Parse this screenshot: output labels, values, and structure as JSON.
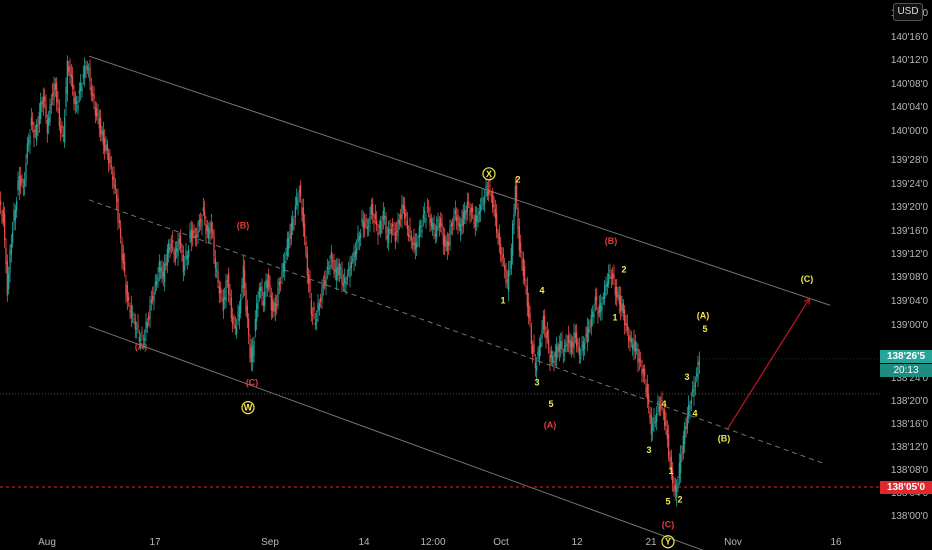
{
  "currency": "USD",
  "chart_data": {
    "type": "line",
    "subtype": "candlestick",
    "title": "",
    "y_range_ticks": [
      "138'00'0",
      "138'04'0",
      "138'08'0",
      "138'12'0",
      "138'16'0",
      "138'20'0",
      "138'24'0",
      "138'28'0",
      "139'00'0",
      "139'04'0",
      "139'08'0",
      "139'12'0",
      "139'16'0",
      "139'20'0",
      "139'24'0",
      "139'28'0",
      "140'00'0",
      "140'04'0",
      "140'08'0",
      "140'12'0",
      "140'16'0",
      "140'20'0"
    ],
    "x_tick_labels": [
      "Aug",
      "17",
      "Sep",
      "14",
      "12:00",
      "Oct",
      "12",
      "21",
      "Nov",
      "16"
    ],
    "last_price_label": "138'26'5",
    "countdown_label": "20:13",
    "horizontal_level_label": "138'05'0",
    "price_path": [
      [
        0,
        139.62
      ],
      [
        4,
        139.55
      ],
      [
        8,
        139.18
      ],
      [
        12,
        139.45
      ],
      [
        16,
        139.62
      ],
      [
        20,
        139.78
      ],
      [
        24,
        139.7
      ],
      [
        28,
        139.92
      ],
      [
        32,
        140.05
      ],
      [
        36,
        139.98
      ],
      [
        40,
        140.1
      ],
      [
        44,
        140.2
      ],
      [
        48,
        140.02
      ],
      [
        52,
        140.18
      ],
      [
        56,
        140.25
      ],
      [
        60,
        140.05
      ],
      [
        64,
        139.98
      ],
      [
        68,
        140.36
      ],
      [
        72,
        140.28
      ],
      [
        76,
        140.12
      ],
      [
        80,
        140.2
      ],
      [
        84,
        140.3
      ],
      [
        88,
        140.36
      ],
      [
        92,
        140.22
      ],
      [
        96,
        140.12
      ],
      [
        100,
        140.05
      ],
      [
        104,
        139.95
      ],
      [
        108,
        139.9
      ],
      [
        112,
        139.8
      ],
      [
        116,
        139.7
      ],
      [
        120,
        139.5
      ],
      [
        124,
        139.3
      ],
      [
        128,
        139.12
      ],
      [
        132,
        139.05
      ],
      [
        136,
        139.0
      ],
      [
        140,
        138.94
      ],
      [
        144,
        138.92
      ],
      [
        148,
        139.02
      ],
      [
        152,
        139.12
      ],
      [
        156,
        139.2
      ],
      [
        160,
        139.3
      ],
      [
        164,
        139.25
      ],
      [
        168,
        139.38
      ],
      [
        172,
        139.42
      ],
      [
        176,
        139.35
      ],
      [
        180,
        139.45
      ],
      [
        184,
        139.3
      ],
      [
        188,
        139.38
      ],
      [
        192,
        139.5
      ],
      [
        196,
        139.45
      ],
      [
        200,
        139.52
      ],
      [
        204,
        139.58
      ],
      [
        208,
        139.46
      ],
      [
        212,
        139.52
      ],
      [
        216,
        139.3
      ],
      [
        220,
        139.18
      ],
      [
        224,
        139.1
      ],
      [
        228,
        139.25
      ],
      [
        232,
        139.05
      ],
      [
        236,
        138.98
      ],
      [
        240,
        139.08
      ],
      [
        244,
        139.28
      ],
      [
        248,
        139.0
      ],
      [
        252,
        138.78
      ],
      [
        256,
        139.02
      ],
      [
        260,
        139.2
      ],
      [
        264,
        139.12
      ],
      [
        268,
        139.26
      ],
      [
        272,
        139.1
      ],
      [
        276,
        139.08
      ],
      [
        280,
        139.22
      ],
      [
        284,
        139.3
      ],
      [
        288,
        139.42
      ],
      [
        292,
        139.5
      ],
      [
        296,
        139.6
      ],
      [
        300,
        139.7
      ],
      [
        304,
        139.52
      ],
      [
        308,
        139.28
      ],
      [
        312,
        139.08
      ],
      [
        316,
        139.02
      ],
      [
        320,
        139.12
      ],
      [
        324,
        139.2
      ],
      [
        328,
        139.28
      ],
      [
        332,
        139.35
      ],
      [
        336,
        139.26
      ],
      [
        340,
        139.3
      ],
      [
        344,
        139.2
      ],
      [
        348,
        139.25
      ],
      [
        352,
        139.32
      ],
      [
        356,
        139.38
      ],
      [
        360,
        139.48
      ],
      [
        364,
        139.55
      ],
      [
        368,
        139.5
      ],
      [
        372,
        139.6
      ],
      [
        376,
        139.52
      ],
      [
        380,
        139.48
      ],
      [
        384,
        139.58
      ],
      [
        388,
        139.45
      ],
      [
        392,
        139.52
      ],
      [
        396,
        139.46
      ],
      [
        400,
        139.55
      ],
      [
        404,
        139.62
      ],
      [
        408,
        139.5
      ],
      [
        412,
        139.45
      ],
      [
        416,
        139.4
      ],
      [
        420,
        139.48
      ],
      [
        424,
        139.55
      ],
      [
        428,
        139.6
      ],
      [
        432,
        139.52
      ],
      [
        436,
        139.48
      ],
      [
        440,
        139.56
      ],
      [
        444,
        139.44
      ],
      [
        448,
        139.4
      ],
      [
        452,
        139.52
      ],
      [
        456,
        139.58
      ],
      [
        460,
        139.5
      ],
      [
        464,
        139.56
      ],
      [
        468,
        139.62
      ],
      [
        472,
        139.58
      ],
      [
        476,
        139.52
      ],
      [
        480,
        139.6
      ],
      [
        484,
        139.66
      ],
      [
        488,
        139.72
      ],
      [
        492,
        139.68
      ],
      [
        496,
        139.55
      ],
      [
        500,
        139.4
      ],
      [
        504,
        139.32
      ],
      [
        508,
        139.2
      ],
      [
        512,
        139.38
      ],
      [
        516,
        139.72
      ],
      [
        520,
        139.4
      ],
      [
        524,
        139.28
      ],
      [
        528,
        139.12
      ],
      [
        532,
        138.92
      ],
      [
        536,
        138.78
      ],
      [
        540,
        138.88
      ],
      [
        544,
        139.02
      ],
      [
        548,
        138.9
      ],
      [
        552,
        138.8
      ],
      [
        556,
        138.84
      ],
      [
        560,
        138.9
      ],
      [
        564,
        138.86
      ],
      [
        568,
        138.92
      ],
      [
        572,
        138.88
      ],
      [
        576,
        138.95
      ],
      [
        580,
        138.84
      ],
      [
        584,
        138.9
      ],
      [
        588,
        138.96
      ],
      [
        592,
        139.02
      ],
      [
        596,
        139.12
      ],
      [
        600,
        139.05
      ],
      [
        604,
        139.15
      ],
      [
        608,
        139.24
      ],
      [
        612,
        139.28
      ],
      [
        616,
        139.18
      ],
      [
        620,
        139.12
      ],
      [
        624,
        139.06
      ],
      [
        628,
        138.95
      ],
      [
        632,
        138.9
      ],
      [
        636,
        138.88
      ],
      [
        640,
        138.8
      ],
      [
        644,
        138.74
      ],
      [
        648,
        138.62
      ],
      [
        652,
        138.45
      ],
      [
        656,
        138.52
      ],
      [
        660,
        138.6
      ],
      [
        664,
        138.55
      ],
      [
        668,
        138.4
      ],
      [
        672,
        138.22
      ],
      [
        676,
        138.1
      ],
      [
        680,
        138.25
      ],
      [
        684,
        138.4
      ],
      [
        688,
        138.52
      ],
      [
        692,
        138.62
      ],
      [
        696,
        138.7
      ],
      [
        700,
        138.82
      ]
    ],
    "wave_labels": [
      {
        "text": "(A)",
        "x": 141,
        "y": 138.87,
        "color": "#e33d3d"
      },
      {
        "text": "(B)",
        "x": 243,
        "y": 139.5,
        "color": "#e33d3d"
      },
      {
        "text": "(C)",
        "x": 252,
        "y": 138.68,
        "color": "#e33d3d"
      },
      {
        "text": "W",
        "x": 248,
        "y": 138.55,
        "color": "#f2e94e",
        "circled": true
      },
      {
        "text": "X",
        "x": 489,
        "y": 139.77,
        "color": "#f2e94e",
        "circled": true
      },
      {
        "text": "2",
        "x": 518,
        "y": 139.74,
        "color": "#f2e94e"
      },
      {
        "text": "1",
        "x": 503,
        "y": 139.11,
        "color": "#f2e94e"
      },
      {
        "text": "4",
        "x": 542,
        "y": 139.16,
        "color": "#f2e94e"
      },
      {
        "text": "3",
        "x": 537,
        "y": 138.68,
        "color": "#f2e94e"
      },
      {
        "text": "5",
        "x": 551,
        "y": 138.57,
        "color": "#f2e94e"
      },
      {
        "text": "(A)",
        "x": 550,
        "y": 138.46,
        "color": "#e33d3d"
      },
      {
        "text": "(B)",
        "x": 611,
        "y": 139.42,
        "color": "#e33d3d"
      },
      {
        "text": "2",
        "x": 624,
        "y": 139.27,
        "color": "#f2e94e"
      },
      {
        "text": "1",
        "x": 615,
        "y": 139.02,
        "color": "#f2e94e"
      },
      {
        "text": "4",
        "x": 664,
        "y": 138.57,
        "color": "#f2e94e"
      },
      {
        "text": "3",
        "x": 649,
        "y": 138.33,
        "color": "#f2e94e"
      },
      {
        "text": "3",
        "x": 687,
        "y": 138.71,
        "color": "#f2e94e"
      },
      {
        "text": "4",
        "x": 695,
        "y": 138.52,
        "color": "#f2e94e"
      },
      {
        "text": "(A)",
        "x": 703,
        "y": 139.03,
        "color": "#f2e94e"
      },
      {
        "text": "5",
        "x": 705,
        "y": 138.96,
        "color": "#f2e94e"
      },
      {
        "text": "(B)",
        "x": 724,
        "y": 138.39,
        "color": "#f2e94e"
      },
      {
        "text": "(C)",
        "x": 807,
        "y": 139.22,
        "color": "#f2e94e"
      },
      {
        "text": "1",
        "x": 671,
        "y": 138.22,
        "color": "#f2e94e"
      },
      {
        "text": "5",
        "x": 668,
        "y": 138.06,
        "color": "#f2e94e"
      },
      {
        "text": "2",
        "x": 680,
        "y": 138.07,
        "color": "#f2e94e"
      },
      {
        "text": "(C)",
        "x": 668,
        "y": 137.94,
        "color": "#e33d3d"
      },
      {
        "text": "Y",
        "x": 668,
        "y": 137.85,
        "color": "#f2e94e",
        "circled": true
      }
    ],
    "channel": {
      "upper": [
        [
          89,
          140.4
        ],
        [
          830,
          139.1
        ]
      ],
      "middle": [
        [
          89,
          139.65
        ],
        [
          826,
          138.27
        ]
      ],
      "lower": [
        [
          89,
          138.99
        ],
        [
          772,
          137.69
        ]
      ]
    },
    "projection_arrow": [
      [
        727,
        138.45
      ],
      [
        810,
        139.14
      ]
    ],
    "grid": false,
    "legend": "none",
    "colors": {
      "up": "#26a69a",
      "down": "#ef5350",
      "last_price": "#26a69a",
      "level": "#e0282e",
      "channel": "#9a9a9a",
      "arrow": "#c0162a"
    }
  }
}
